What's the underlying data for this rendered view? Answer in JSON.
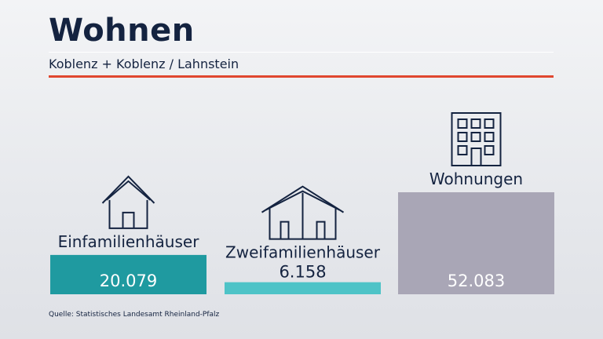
{
  "header": {
    "title": "Wohnen",
    "subtitle": "Koblenz + Koblenz / Lahnstein"
  },
  "footer": {
    "source": "Quelle: Statistisches Landesamt Rheinland-Pfalz"
  },
  "chart_data": {
    "type": "bar",
    "categories": [
      "Einfamilienhäuser",
      "Zweifamilienhäuser",
      "Wohnungen"
    ],
    "values": [
      20079,
      6158,
      52083
    ],
    "value_labels": [
      "20.079",
      "6.158",
      "52.083"
    ],
    "icons": [
      "house-icon",
      "double-house-icon",
      "apartment-building-icon"
    ],
    "colors": [
      "#1f9aa0",
      "#4ec3c7",
      "#a9a6b6"
    ],
    "ylim": [
      0,
      52083
    ],
    "grid": false,
    "legend": "none"
  }
}
